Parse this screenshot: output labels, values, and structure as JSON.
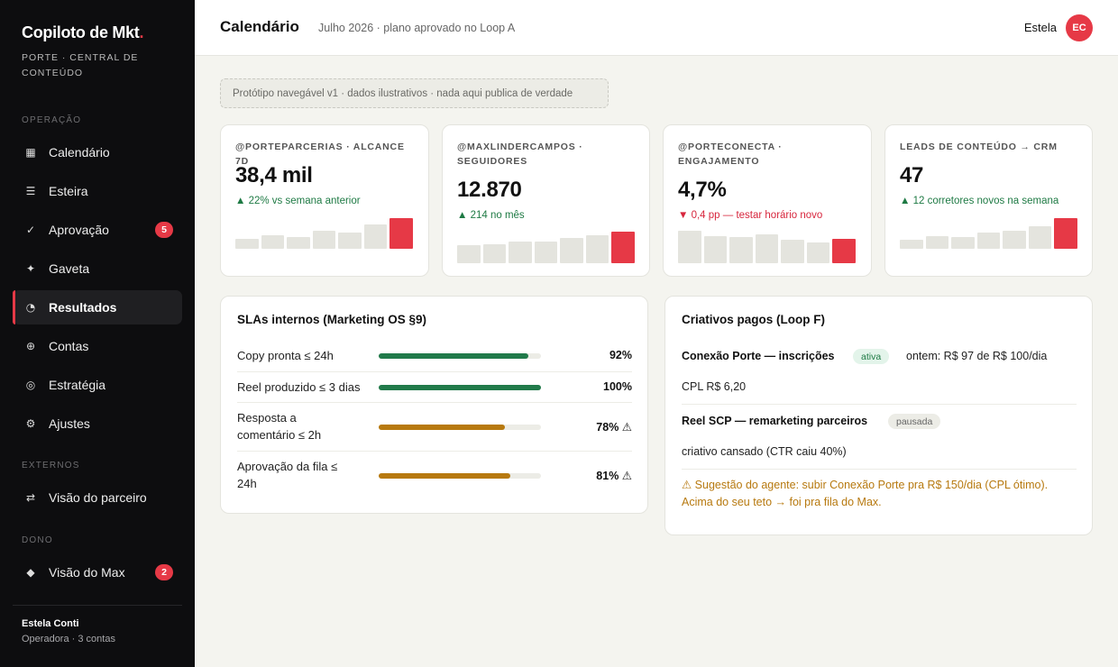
{
  "sidebar": {
    "brand": "Copiloto de Mkt",
    "brand_dot": ".",
    "subtitle": "PORTE · CENTRAL DE CONTEÚDO",
    "section_operacao": "OPERAÇÃO",
    "section_externos": "EXTERNOS",
    "section_dono": "DONO",
    "items": [
      {
        "label": "Calendário",
        "icon": "calendar-icon",
        "glyph": "▦"
      },
      {
        "label": "Esteira",
        "icon": "list-icon",
        "glyph": "☰"
      },
      {
        "label": "Aprovação",
        "icon": "check-icon",
        "glyph": "✓",
        "badge": "5"
      },
      {
        "label": "Gaveta",
        "icon": "sparkle-icon",
        "glyph": "✦"
      },
      {
        "label": "Resultados",
        "icon": "pie-chart-icon",
        "glyph": "◔"
      },
      {
        "label": "Contas",
        "icon": "globe-icon",
        "glyph": "⊕"
      },
      {
        "label": "Estratégia",
        "icon": "target-icon",
        "glyph": "◎"
      },
      {
        "label": "Ajustes",
        "icon": "gear-icon",
        "glyph": "⚙"
      },
      {
        "label": "Visão do parceiro",
        "icon": "swap-icon",
        "glyph": "⇄"
      },
      {
        "label": "Visão do Max",
        "icon": "diamond-icon",
        "glyph": "◆",
        "badge": "2"
      }
    ],
    "user_name": "Estela Conti",
    "user_sub": "Operadora · 3 contas"
  },
  "header": {
    "title": "Calendário",
    "subtitle": "Julho 2026 · plano aprovado no Loop A",
    "user": "Estela",
    "avatar": "EC"
  },
  "banner": "Protótipo navegável v1 · dados ilustrativos · nada aqui publica de verdade",
  "kpis": [
    {
      "label": "@PORTEPARCERIAS · ALCANCE 7D",
      "value": "38,4 mil",
      "delta": "▲ 22% vs semana anterior",
      "trend": "up",
      "spark": [
        0.31,
        0.45,
        0.38,
        0.59,
        0.52,
        0.79,
        1.0
      ]
    },
    {
      "label": "@MAXLINDERCAMPOS · SEGUIDORES",
      "value": "12.870",
      "delta": "▲ 214 no mês",
      "trend": "up",
      "spark": [
        0.57,
        0.61,
        0.68,
        0.68,
        0.79,
        0.89,
        1.0
      ]
    },
    {
      "label": "@PORTECONECTA · ENGAJAMENTO",
      "value": "4,7%",
      "delta": "▼ 0,4 pp — testar horário novo",
      "trend": "down",
      "spark": [
        1.0,
        0.83,
        0.8,
        0.88,
        0.72,
        0.64,
        0.76
      ]
    },
    {
      "label": "LEADS DE CONTEÚDO → CRM",
      "value": "47",
      "delta": "▲ 12 corretores novos na semana",
      "trend": "up",
      "spark": [
        0.29,
        0.41,
        0.38,
        0.53,
        0.59,
        0.74,
        1.0
      ]
    }
  ],
  "sla": {
    "title": "SLAs internos (Marketing OS §9)",
    "rows": [
      {
        "label": "Copy pronta ≤ 24h",
        "pct": "92%",
        "value": 0.92,
        "color": "#217a4a"
      },
      {
        "label": "Reel produzido ≤ 3 dias",
        "pct": "100%",
        "value": 1.0,
        "color": "#217a4a"
      },
      {
        "label": "Resposta a comentário ≤ 2h",
        "pct": "78% ⚠",
        "value": 0.78,
        "color": "#b7790f"
      },
      {
        "label": "Aprovação da fila ≤ 24h",
        "pct": "81% ⚠",
        "value": 0.81,
        "color": "#b7790f"
      }
    ]
  },
  "criativos": {
    "title": "Criativos pagos (Loop F)",
    "items": [
      {
        "name": "Conexão Porte — inscrições",
        "status": "ativa",
        "meta1": "ontem: R$ 97 de R$ 100/dia",
        "meta2": "CPL R$ 6,20"
      },
      {
        "name": "Reel SCP — remarketing parceiros",
        "status": "pausada",
        "meta2": "criativo cansado (CTR caiu 40%)"
      }
    ],
    "suggestion": "⚠ Sugestão do agente: subir Conexão Porte pra R$ 150/dia (CPL ótimo). Acima do seu teto → foi pra fila do Max."
  }
}
